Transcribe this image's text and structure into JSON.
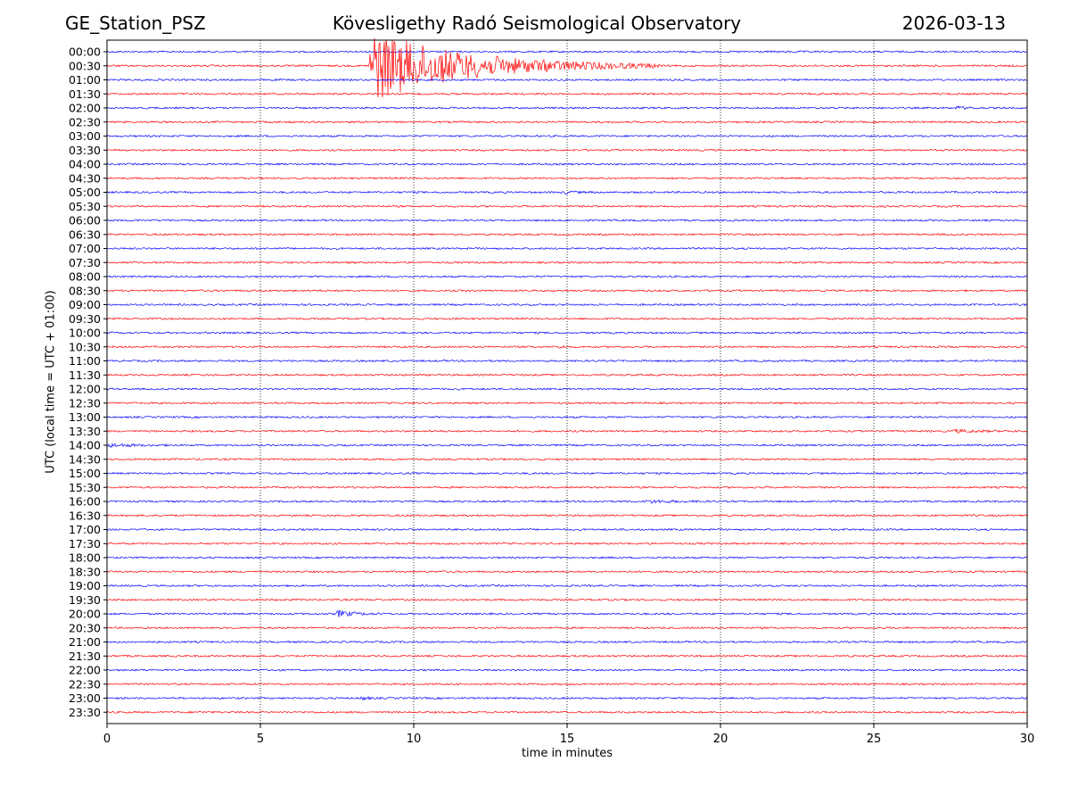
{
  "header": {
    "station": "GE_Station_PSZ",
    "title": "Kövesligethy Radó Seismological Observatory",
    "date": "2026-03-13"
  },
  "chart_data": {
    "type": "line",
    "subtype": "helicorder",
    "xlabel": "time in minutes",
    "ylabel": "UTC (local time = UTC + 01:00)",
    "xlim": [
      0,
      30
    ],
    "xticks": [
      0,
      5,
      10,
      15,
      20,
      25,
      30
    ],
    "grid": "vertical dotted lines at each x tick",
    "row_labels": [
      "00:00",
      "00:30",
      "01:00",
      "01:30",
      "02:00",
      "02:30",
      "03:00",
      "03:30",
      "04:00",
      "04:30",
      "05:00",
      "05:30",
      "06:00",
      "06:30",
      "07:00",
      "07:30",
      "08:00",
      "08:30",
      "09:00",
      "09:30",
      "10:00",
      "10:30",
      "11:00",
      "11:30",
      "12:00",
      "12:30",
      "13:00",
      "13:30",
      "14:00",
      "14:30",
      "15:00",
      "15:30",
      "16:00",
      "16:30",
      "17:00",
      "17:30",
      "18:00",
      "18:30",
      "19:00",
      "19:30",
      "20:00",
      "20:30",
      "21:00",
      "21:30",
      "22:00",
      "22:30",
      "23:00",
      "23:30"
    ],
    "colors": [
      "#0000ff",
      "#ff0000"
    ],
    "events": [
      {
        "row": "00:30",
        "start_min": 8.5,
        "end_min": 18,
        "peak_min": 8.7,
        "amplitude": "very high"
      },
      {
        "row": "02:00",
        "start_min": 27.6,
        "end_min": 28.6,
        "amplitude": "low"
      },
      {
        "row": "05:00",
        "start_min": 14.8,
        "end_min": 16.0,
        "amplitude": "low"
      },
      {
        "row": "10:30",
        "start_min": 14.6,
        "end_min": 15.0,
        "amplitude": "low"
      },
      {
        "row": "13:30",
        "start_min": 27.5,
        "end_min": 30,
        "amplitude": "low"
      },
      {
        "row": "14:00",
        "start_min": 0,
        "end_min": 2.5,
        "amplitude": "low"
      },
      {
        "row": "16:00",
        "start_min": 17.5,
        "end_min": 20.5,
        "amplitude": "low"
      },
      {
        "row": "20:00",
        "start_min": 7.4,
        "end_min": 9.0,
        "amplitude": "medium"
      },
      {
        "row": "23:00",
        "start_min": 8.2,
        "end_min": 9.0,
        "amplitude": "low"
      }
    ]
  }
}
